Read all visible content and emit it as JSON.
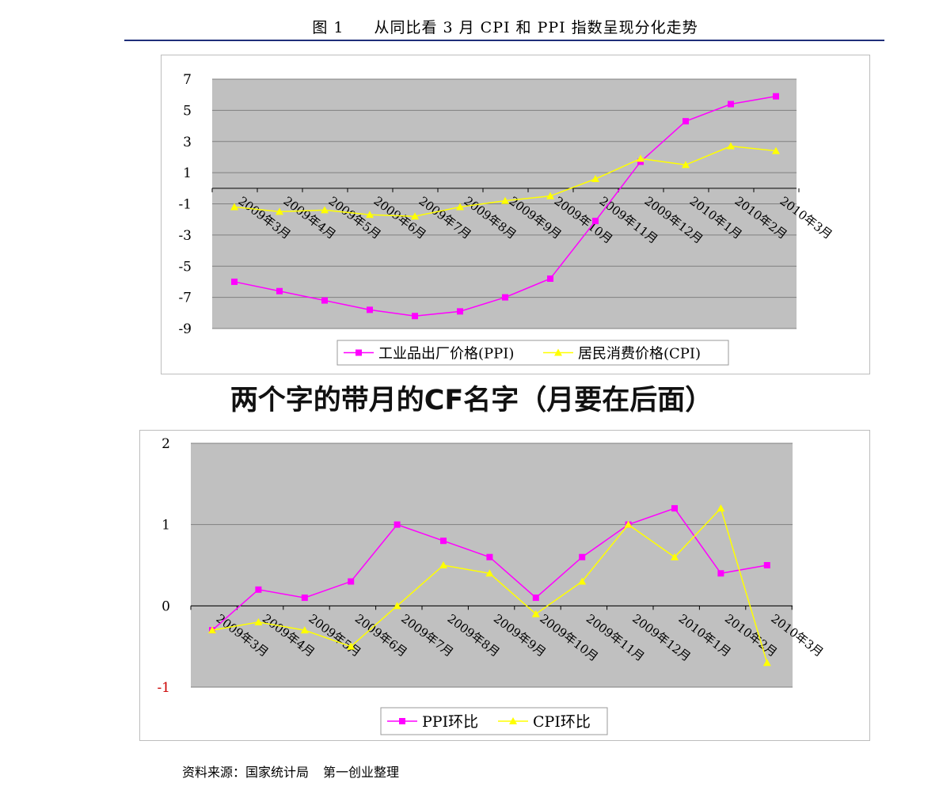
{
  "header": {
    "figure_number": "图 1",
    "figure_title": "从同比看 3 月 CPI 和 PPI 指数呈现分化走势"
  },
  "overlay": {
    "title": "两个字的带月的CF名字（月要在后面）"
  },
  "footer": {
    "source_label": "资料来源：国家统计局",
    "source_org": "第一创业整理"
  },
  "colors": {
    "plot_bg": "#c0c0c0",
    "ppi": "#ff00ff",
    "cpi": "#ffff00",
    "grid": "#808080",
    "title_rule": "#1f2f7a",
    "negative_tick": "#cc0000"
  },
  "chart_data": [
    {
      "type": "line",
      "categories": [
        "2009年3月",
        "2009年4月",
        "2009年5月",
        "2009年6月",
        "2009年7月",
        "2009年8月",
        "2009年9月",
        "2009年10月",
        "2009年11月",
        "2009年12月",
        "2010年1月",
        "2010年2月",
        "2010年3月"
      ],
      "series": [
        {
          "name": "工业品出厂价格(PPI)",
          "marker": "square",
          "values": [
            -6.0,
            -6.6,
            -7.2,
            -7.8,
            -8.2,
            -7.9,
            -7.0,
            -5.8,
            -2.1,
            1.7,
            4.3,
            5.4,
            5.9
          ]
        },
        {
          "name": "居民消费价格(CPI)",
          "marker": "triangle",
          "values": [
            -1.2,
            -1.5,
            -1.4,
            -1.7,
            -1.8,
            -1.2,
            -0.8,
            -0.5,
            0.6,
            1.9,
            1.5,
            2.7,
            2.4
          ]
        }
      ],
      "ylim": [
        -9,
        7
      ],
      "yticks": [
        "7",
        "5",
        "3",
        "1",
        "-1",
        "-3",
        "-5",
        "-7",
        "-9"
      ],
      "grid": true,
      "legend": "bottom"
    },
    {
      "type": "line",
      "categories": [
        "2009年3月",
        "2009年4月",
        "2009年5月",
        "2009年6月",
        "2009年7月",
        "2009年8月",
        "2009年9月",
        "2009年10月",
        "2009年11月",
        "2009年12月",
        "2010年1月",
        "2010年2月",
        "2010年3月"
      ],
      "series": [
        {
          "name": "PPI环比",
          "marker": "square",
          "values": [
            -0.3,
            0.2,
            0.1,
            0.3,
            1.0,
            0.8,
            0.6,
            0.1,
            0.6,
            1.0,
            1.2,
            0.4,
            0.5
          ]
        },
        {
          "name": "CPI环比",
          "marker": "triangle",
          "values": [
            -0.3,
            -0.2,
            -0.3,
            -0.5,
            0.0,
            0.5,
            0.4,
            -0.1,
            0.3,
            1.0,
            0.6,
            1.2,
            -0.7
          ]
        }
      ],
      "ylim": [
        -1,
        2
      ],
      "yticks": [
        "2",
        "1",
        "0",
        "-1"
      ],
      "grid": true,
      "legend": "bottom"
    }
  ]
}
